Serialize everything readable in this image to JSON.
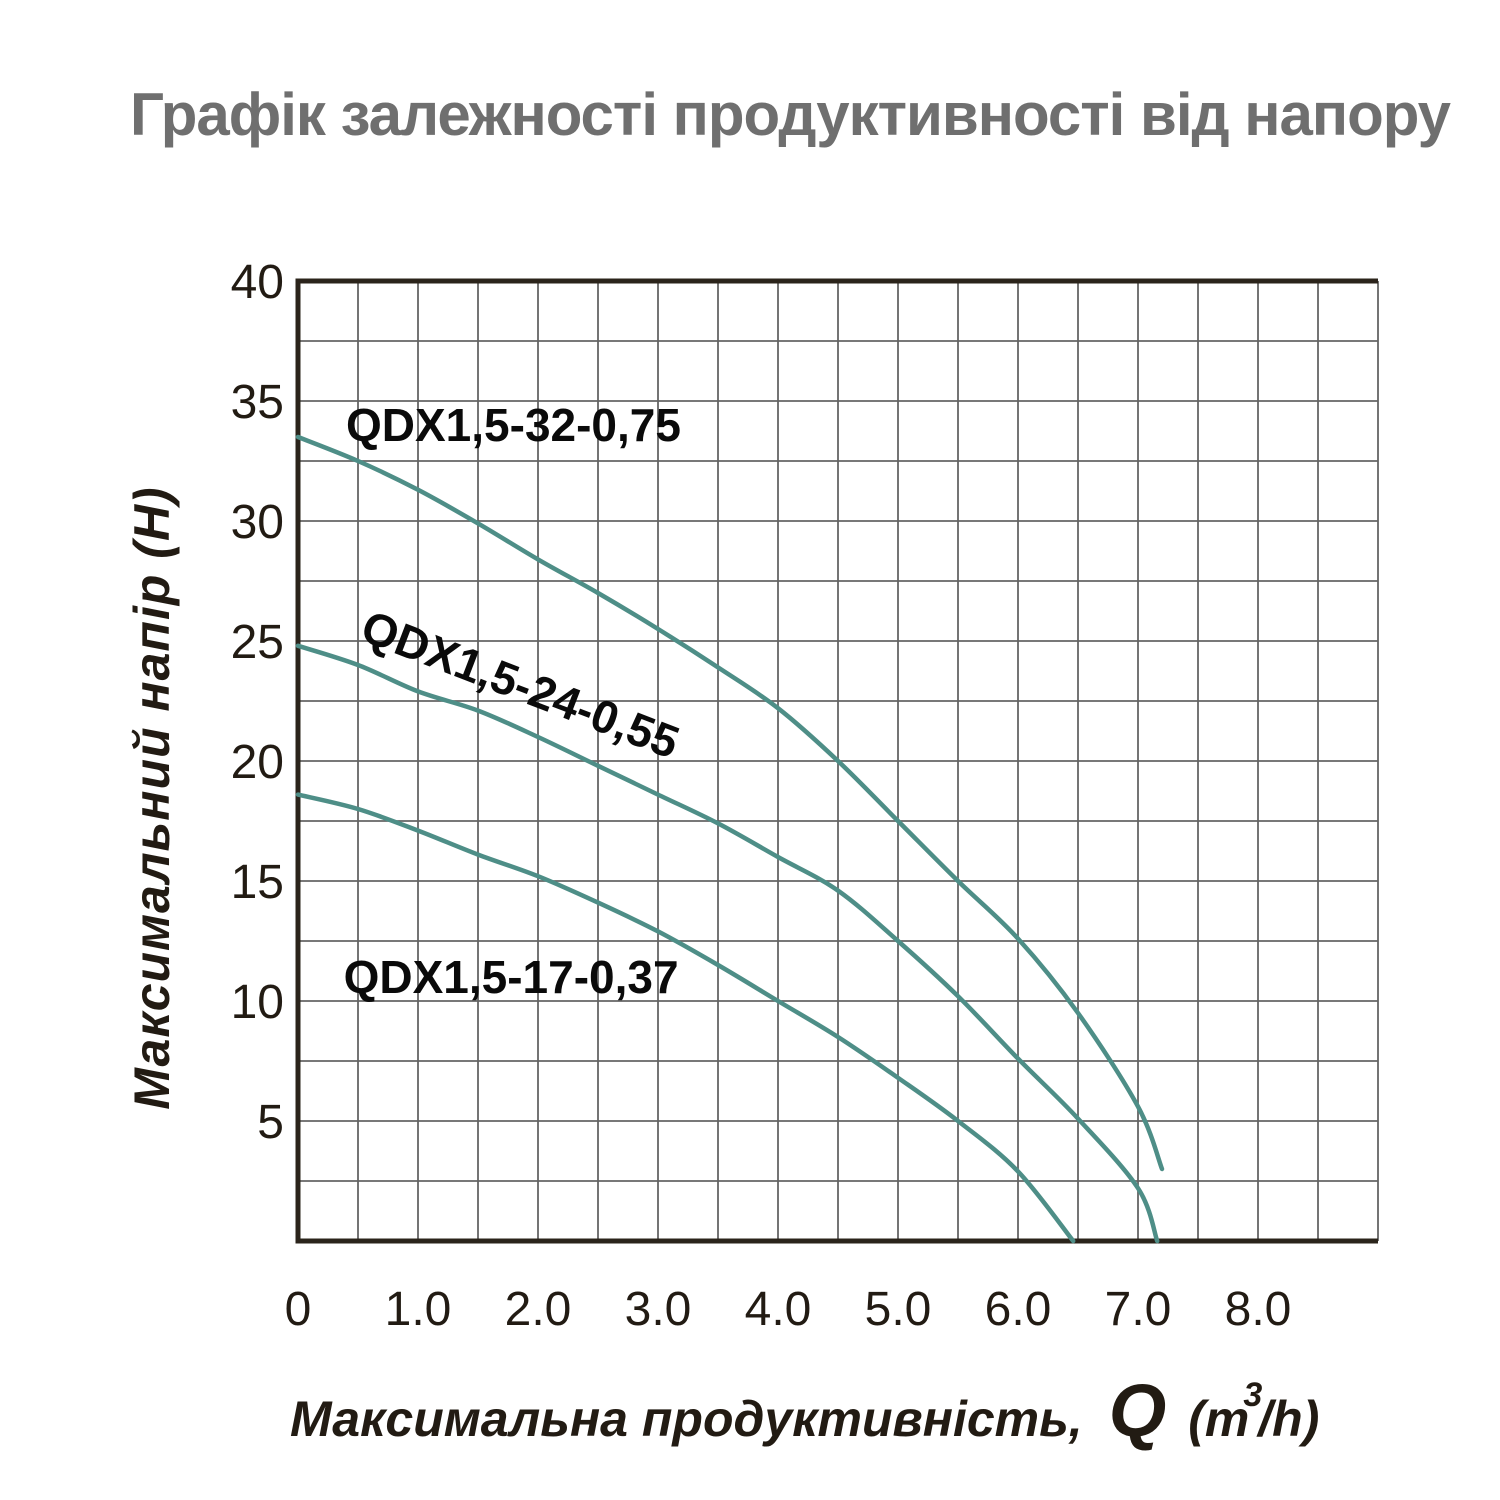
{
  "title": {
    "text": "Графік залежності продуктивності від напору"
  },
  "chart_data": {
    "type": "line",
    "title": "Графік залежності продуктивності від напору",
    "ylabel": "Максимальний напір (Н)",
    "xlabel": {
      "prefix": "Максимальна продуктивність,",
      "symbol": "Q",
      "unit_open": "(m",
      "unit_sup": "3",
      "unit_close": "/h)"
    },
    "x_axis": {
      "min": 0,
      "max": 9,
      "grid_step": 0.5,
      "ticks": [
        {
          "value": 0,
          "label": "0"
        },
        {
          "value": 1,
          "label": "1.0"
        },
        {
          "value": 2,
          "label": "2.0"
        },
        {
          "value": 3,
          "label": "3.0"
        },
        {
          "value": 4,
          "label": "4.0"
        },
        {
          "value": 5,
          "label": "5.0"
        },
        {
          "value": 6,
          "label": "6.0"
        },
        {
          "value": 7,
          "label": "7.0"
        },
        {
          "value": 8,
          "label": "8.0"
        }
      ]
    },
    "y_axis": {
      "min": 0,
      "max": 40,
      "grid_step": 2.5,
      "ticks": [
        {
          "value": 5,
          "label": "5"
        },
        {
          "value": 10,
          "label": "10"
        },
        {
          "value": 15,
          "label": "15"
        },
        {
          "value": 20,
          "label": "20"
        },
        {
          "value": 25,
          "label": "25"
        },
        {
          "value": 30,
          "label": "30"
        },
        {
          "value": 35,
          "label": "35"
        },
        {
          "value": 40,
          "label": "40"
        }
      ]
    },
    "grid": true,
    "legend_position": "inline-curve-labels",
    "series": [
      {
        "name": "QDX1,5-32-0,75",
        "label": {
          "q": 0.4,
          "h": 34.0,
          "rotate": 0
        },
        "points": [
          [
            0,
            33.5
          ],
          [
            0.5,
            32.5
          ],
          [
            1,
            31.3
          ],
          [
            1.5,
            29.9
          ],
          [
            2,
            28.4
          ],
          [
            2.5,
            27.0
          ],
          [
            3,
            25.5
          ],
          [
            3.5,
            23.9
          ],
          [
            4,
            22.2
          ],
          [
            4.5,
            20.0
          ],
          [
            5,
            17.5
          ],
          [
            5.5,
            15.0
          ],
          [
            6,
            12.6
          ],
          [
            6.5,
            9.5
          ],
          [
            7,
            5.6
          ],
          [
            7.2,
            3.0
          ]
        ]
      },
      {
        "name": "QDX1,5-24-0,55",
        "label": {
          "q": 0.55,
          "h": 25.7,
          "rotate": 21
        },
        "points": [
          [
            0,
            24.8
          ],
          [
            0.5,
            24.0
          ],
          [
            1,
            22.9
          ],
          [
            1.5,
            22.1
          ],
          [
            2,
            21.0
          ],
          [
            2.5,
            19.8
          ],
          [
            3,
            18.6
          ],
          [
            3.5,
            17.4
          ],
          [
            4,
            16.0
          ],
          [
            4.5,
            14.6
          ],
          [
            5,
            12.5
          ],
          [
            5.5,
            10.2
          ],
          [
            6,
            7.6
          ],
          [
            6.5,
            5.1
          ],
          [
            7,
            2.2
          ],
          [
            7.16,
            0
          ]
        ]
      },
      {
        "name": "QDX1,5-17-0,37",
        "label": {
          "q": 0.38,
          "h": 11.0,
          "rotate": 0
        },
        "points": [
          [
            0,
            18.6
          ],
          [
            0.5,
            18.0
          ],
          [
            1,
            17.1
          ],
          [
            1.5,
            16.1
          ],
          [
            2,
            15.2
          ],
          [
            2.5,
            14.1
          ],
          [
            3,
            12.9
          ],
          [
            3.5,
            11.5
          ],
          [
            4,
            10.0
          ],
          [
            4.5,
            8.5
          ],
          [
            5,
            6.8
          ],
          [
            5.5,
            5.0
          ],
          [
            6,
            2.9
          ],
          [
            6.46,
            0
          ]
        ]
      }
    ],
    "colors": {
      "curve": "#4e8e87",
      "grid": "#646464",
      "border": "#2b241b",
      "tick_text": "#221b13",
      "axis_title_text": "#221b13",
      "curve_label_text": "#0a0a0a",
      "title_text": "#6f6f6f",
      "background": "#ffffff"
    }
  }
}
